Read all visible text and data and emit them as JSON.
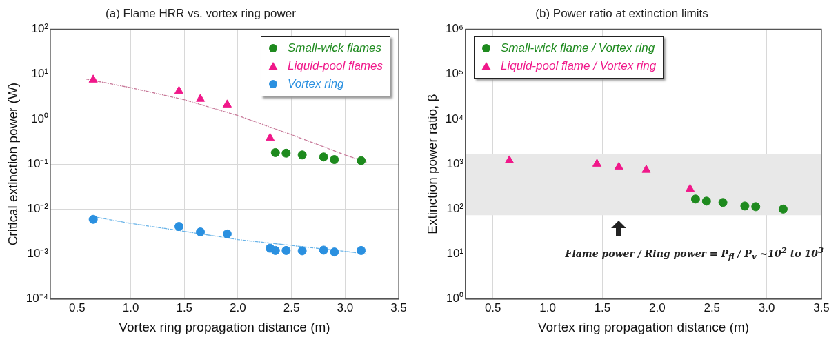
{
  "chart_data": [
    {
      "type": "scatter",
      "title": "(a) Flame HRR vs. vortex ring power",
      "xlabel": "Vortex ring propagation distance (m)",
      "ylabel": "Critical extinction power (W)",
      "xlim": [
        0.25,
        3.5
      ],
      "xticks": [
        0.5,
        {
          "value": 1,
          "label": "1.0"
        },
        1.5,
        {
          "value": 2,
          "label": "2.0"
        },
        2.5,
        {
          "value": 3,
          "label": "3.0"
        },
        3.5
      ],
      "ylim": [
        0.0001,
        100
      ],
      "yticks": [
        {
          "value": 0.0001,
          "label": "10⁻⁴"
        },
        {
          "value": 0.001,
          "label": "10⁻³"
        },
        {
          "value": 0.01,
          "label": "10⁻²"
        },
        {
          "value": 0.1,
          "label": "10⁻¹"
        },
        {
          "value": 1,
          "label": "10⁰"
        },
        {
          "value": 10,
          "label": "10¹"
        },
        {
          "value": 100,
          "label": "10²"
        }
      ],
      "log": "y",
      "grid": true,
      "legend": "top right",
      "series": [
        {
          "name": "Small-wick flames",
          "type": "scatter",
          "marker": "circle",
          "color": "#1e8a1e",
          "x": [
            2.35,
            2.45,
            2.6,
            2.8,
            2.9,
            3.15
          ],
          "values": [
            0.18,
            0.175,
            0.16,
            0.144,
            0.126,
            0.119
          ]
        },
        {
          "name": "Liquid-pool flames",
          "type": "scatter",
          "marker": "triangle",
          "color": "#f0188a",
          "x": [
            0.65,
            1.45,
            1.65,
            1.9,
            2.3
          ],
          "values": [
            7.5,
            4.2,
            2.8,
            2.1,
            0.38
          ]
        },
        {
          "name": "Vortex ring",
          "type": "scatter",
          "marker": "circle",
          "color": "#2a90e0",
          "x": [
            0.65,
            1.45,
            1.65,
            1.9,
            2.3,
            2.35,
            2.45,
            2.6,
            2.8,
            2.9,
            3.15
          ],
          "values": [
            0.0059,
            0.0041,
            0.0031,
            0.0028,
            0.00135,
            0.0012,
            0.0012,
            0.00118,
            0.00122,
            0.00111,
            0.0012
          ]
        },
        {
          "type": "line",
          "marker": "none",
          "line_style": "dashed",
          "color": "#c87a9a",
          "x": [
            0.58,
            1.0,
            1.5,
            2.0,
            2.5,
            3.0,
            3.2
          ],
          "values": [
            7.8,
            5.0,
            2.7,
            1.2,
            0.45,
            0.16,
            0.11
          ]
        },
        {
          "type": "line",
          "marker": "none",
          "line_style": "dashed",
          "color": "#6ab4e8",
          "x": [
            0.63,
            1.0,
            1.5,
            2.0,
            2.5,
            3.0,
            3.2
          ],
          "values": [
            0.0069,
            0.0048,
            0.0032,
            0.0021,
            0.00155,
            0.00115,
            0.001
          ]
        }
      ]
    },
    {
      "type": "scatter",
      "title": "(b) Power ratio at extinction limits",
      "xlabel": "Vortex ring propagation distance (m)",
      "ylabel": "Extinction power ratio, β",
      "xlim": [
        0.25,
        3.5
      ],
      "xticks": [
        0.5,
        {
          "value": 1,
          "label": "1.0"
        },
        1.5,
        {
          "value": 2,
          "label": "2.0"
        },
        2.5,
        {
          "value": 3,
          "label": "3.0"
        },
        3.5
      ],
      "ylim": [
        1,
        1000000
      ],
      "yticks": [
        {
          "value": 1,
          "label": "10⁰"
        },
        {
          "value": 10,
          "label": "10¹"
        },
        {
          "value": 100,
          "label": "10²"
        },
        {
          "value": 1000,
          "label": "10³"
        },
        {
          "value": 10000,
          "label": "10⁴"
        },
        {
          "value": 100000,
          "label": "10⁵"
        },
        {
          "value": 1000000,
          "label": "10⁶"
        }
      ],
      "log": "y",
      "grid": true,
      "legend": "top left",
      "bands": [
        {
          "axis": "y",
          "from": 73,
          "to": 1700,
          "color": "#e8e8e8"
        }
      ],
      "annotations": [
        "Flame power / Ring power = P$_{fl}$ / P$_{v}$ ~10$^{2}$ to 10$^{3}$"
      ],
      "series": [
        {
          "name": "Small-wick flame / Vortex ring",
          "type": "scatter",
          "marker": "circle",
          "color": "#1e8a1e",
          "x": [
            2.35,
            2.45,
            2.6,
            2.8,
            2.9,
            3.15
          ],
          "values": [
            167,
            150,
            140,
            117,
            113,
            100
          ]
        },
        {
          "name": "Liquid-pool flame / Vortex ring",
          "type": "scatter",
          "marker": "triangle",
          "color": "#f0188a",
          "x": [
            0.65,
            1.45,
            1.65,
            1.9,
            2.3
          ],
          "values": [
            1200,
            1010,
            860,
            740,
            280
          ]
        }
      ]
    }
  ]
}
